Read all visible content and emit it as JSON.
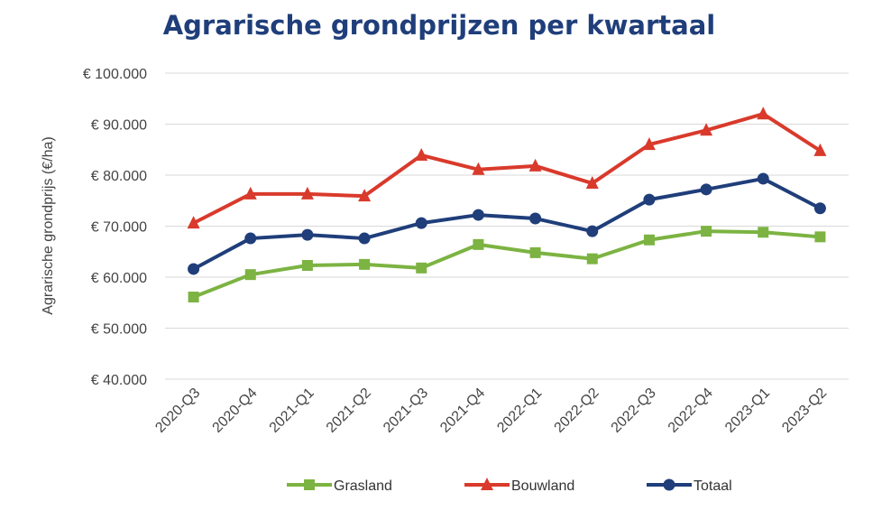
{
  "chart_data": {
    "type": "line",
    "title": "Agrarische grondprijzen per kwartaal",
    "xlabel": "",
    "ylabel": "Agrarische grondprijs (€/ha)",
    "ylim": [
      40000,
      100000
    ],
    "yticks": [
      "€ 40.000",
      "€ 50.000",
      "€ 60.000",
      "€ 70.000",
      "€ 80.000",
      "€ 90.000",
      "€ 100.000"
    ],
    "grid": true,
    "legend_position": "bottom",
    "categories": [
      "2020-Q3",
      "2020-Q4",
      "2021-Q1",
      "2021-Q2",
      "2021-Q3",
      "2021-Q4",
      "2022-Q1",
      "2022-Q2",
      "2022-Q3",
      "2022-Q4",
      "2023-Q1",
      "2023-Q2"
    ],
    "series": [
      {
        "name": "Grasland",
        "color": "#7cb342",
        "marker": "square",
        "values": [
          56100,
          60500,
          62300,
          62500,
          61800,
          66400,
          64800,
          63600,
          67300,
          69000,
          68800,
          67900
        ]
      },
      {
        "name": "Bouwland",
        "color": "#d93a2b",
        "marker": "triangle",
        "values": [
          70600,
          76300,
          76300,
          75900,
          83900,
          81100,
          81800,
          78400,
          86000,
          88800,
          92000,
          84800
        ]
      },
      {
        "name": "Totaal",
        "color": "#1f3e7a",
        "marker": "circle",
        "values": [
          61600,
          67600,
          68300,
          67600,
          70600,
          72200,
          71500,
          69000,
          75200,
          77200,
          79300,
          73500
        ]
      }
    ]
  }
}
